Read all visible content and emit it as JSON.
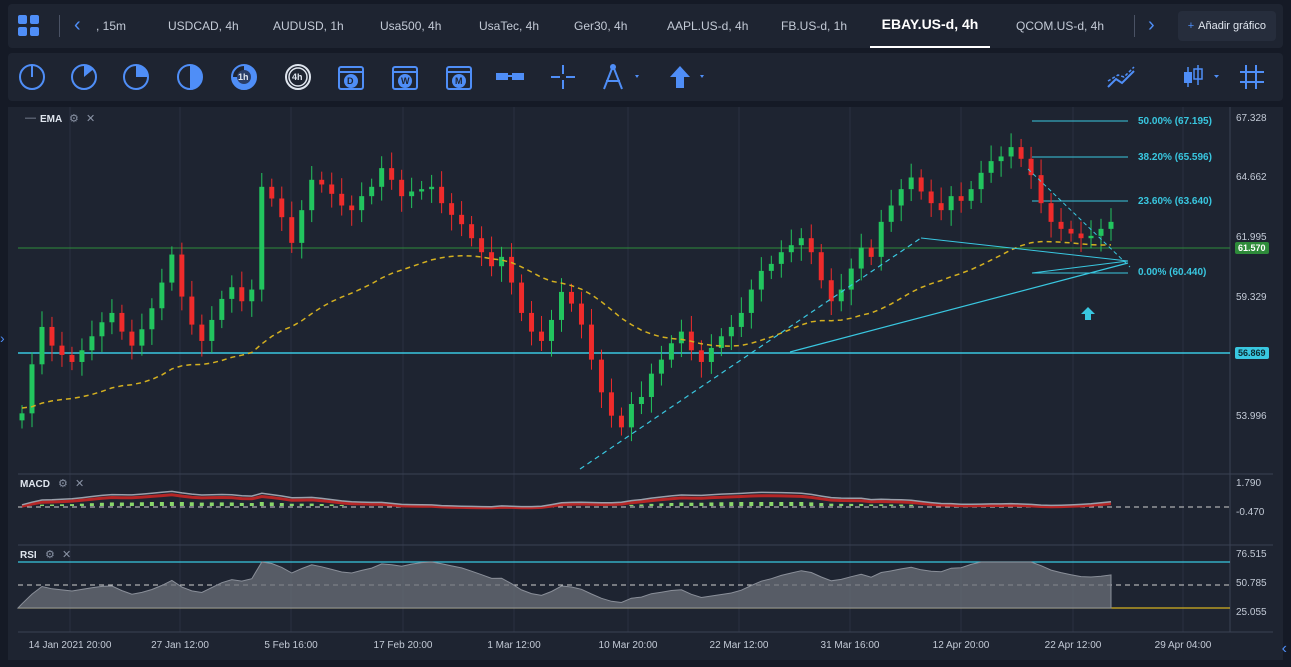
{
  "tabs": [
    {
      "label": ", 15m",
      "active": false
    },
    {
      "label": "USDCAD, 4h",
      "active": false
    },
    {
      "label": "AUDUSD, 1h",
      "active": false
    },
    {
      "label": "Usa500, 4h",
      "active": false
    },
    {
      "label": "UsaTec, 4h",
      "active": false
    },
    {
      "label": "Ger30, 4h",
      "active": false
    },
    {
      "label": "AAPL.US-d, 4h",
      "active": false
    },
    {
      "label": "FB.US-d, 1h",
      "active": false
    },
    {
      "label": "EBAY.US-d, 4h",
      "active": true
    },
    {
      "label": "QCOM.US-d, 4h",
      "active": false
    }
  ],
  "add_chart_label": "Añadir gráfico",
  "toolbar": {
    "timeframes": [
      "1m",
      "5m",
      "15m",
      "30m",
      "1h",
      "4h",
      "D",
      "W",
      "M"
    ],
    "icons": [
      "clock-1m-icon",
      "clock-5m-icon",
      "clock-15m-icon",
      "clock-30m-icon",
      "clock-1h-icon",
      "clock-4h-icon",
      "calendar-daily-icon",
      "calendar-weekly-icon",
      "calendar-monthly-icon",
      "crosshair-bars-icon",
      "crosshair-icon",
      "drawing-compass-icon",
      "arrow-up-icon",
      "line-chart-type-icon",
      "candle-chart-type-icon",
      "grid-toggle-icon"
    ]
  },
  "indicators": {
    "main": "EMA",
    "macd": "MACD",
    "rsi": "RSI"
  },
  "price_axis": [
    "67.328",
    "64.662",
    "61.995",
    "59.329",
    "53.996"
  ],
  "current_price": "61.570",
  "support_price": "56.869",
  "macd_axis": [
    "1.790",
    "-0.470"
  ],
  "rsi_axis": [
    "76.515",
    "50.785",
    "25.055"
  ],
  "date_axis": [
    "14 Jan 2021 20:00",
    "27 Jan 12:00",
    "5 Feb 16:00",
    "17 Feb 20:00",
    "1 Mar 12:00",
    "10 Mar 20:00",
    "22 Mar 12:00",
    "31 Mar 16:00",
    "12 Apr 20:00",
    "22 Apr 12:00",
    "29 Apr 04:00"
  ],
  "fibonacci": [
    {
      "label": "50.00% (67.195)"
    },
    {
      "label": "38.20% (65.596)"
    },
    {
      "label": "23.60% (63.640)"
    },
    {
      "label": "0.00% (60.440)"
    }
  ],
  "colors": {
    "bull": "#22c55e",
    "bear": "#ef2b2b",
    "fib": "#39c7e0",
    "ema": "#d4b020",
    "accent": "#4f8ef7",
    "price_line": "#2e8b3a"
  },
  "chart_data": {
    "type": "candlestick",
    "symbol": "EBAY.US-d",
    "timeframe": "4h",
    "y_range": [
      52.0,
      68.0
    ],
    "closes": [
      53.3,
      55.4,
      57.0,
      56.2,
      55.8,
      55.5,
      56.0,
      56.6,
      57.2,
      57.6,
      56.8,
      56.2,
      56.9,
      57.8,
      58.9,
      60.1,
      58.3,
      57.1,
      56.4,
      57.3,
      58.2,
      58.7,
      58.1,
      58.6,
      63.0,
      62.5,
      61.7,
      60.6,
      62.0,
      63.3,
      63.1,
      62.7,
      62.2,
      62.0,
      62.6,
      63.0,
      63.8,
      63.3,
      62.6,
      62.8,
      62.9,
      63.0,
      62.3,
      61.8,
      61.4,
      60.8,
      60.2,
      59.6,
      60.0,
      58.9,
      57.6,
      56.8,
      56.4,
      57.3,
      58.5,
      58.0,
      57.1,
      55.6,
      54.2,
      53.2,
      52.7,
      53.7,
      54.0,
      55.0,
      55.6,
      56.3,
      56.8,
      56.0,
      55.5,
      56.1,
      56.6,
      57.0,
      57.6,
      58.6,
      59.4,
      59.7,
      60.2,
      60.5,
      60.8,
      60.2,
      59.0,
      58.1,
      58.6,
      59.5,
      60.4,
      60.0,
      61.5,
      62.2,
      62.9,
      63.4,
      62.8,
      62.3,
      62.0,
      62.6,
      62.4,
      62.9,
      63.6,
      64.1,
      64.3,
      64.7,
      64.2,
      63.5,
      62.3,
      61.5,
      61.2,
      61.0,
      60.8,
      60.9,
      61.2,
      61.5
    ]
  }
}
